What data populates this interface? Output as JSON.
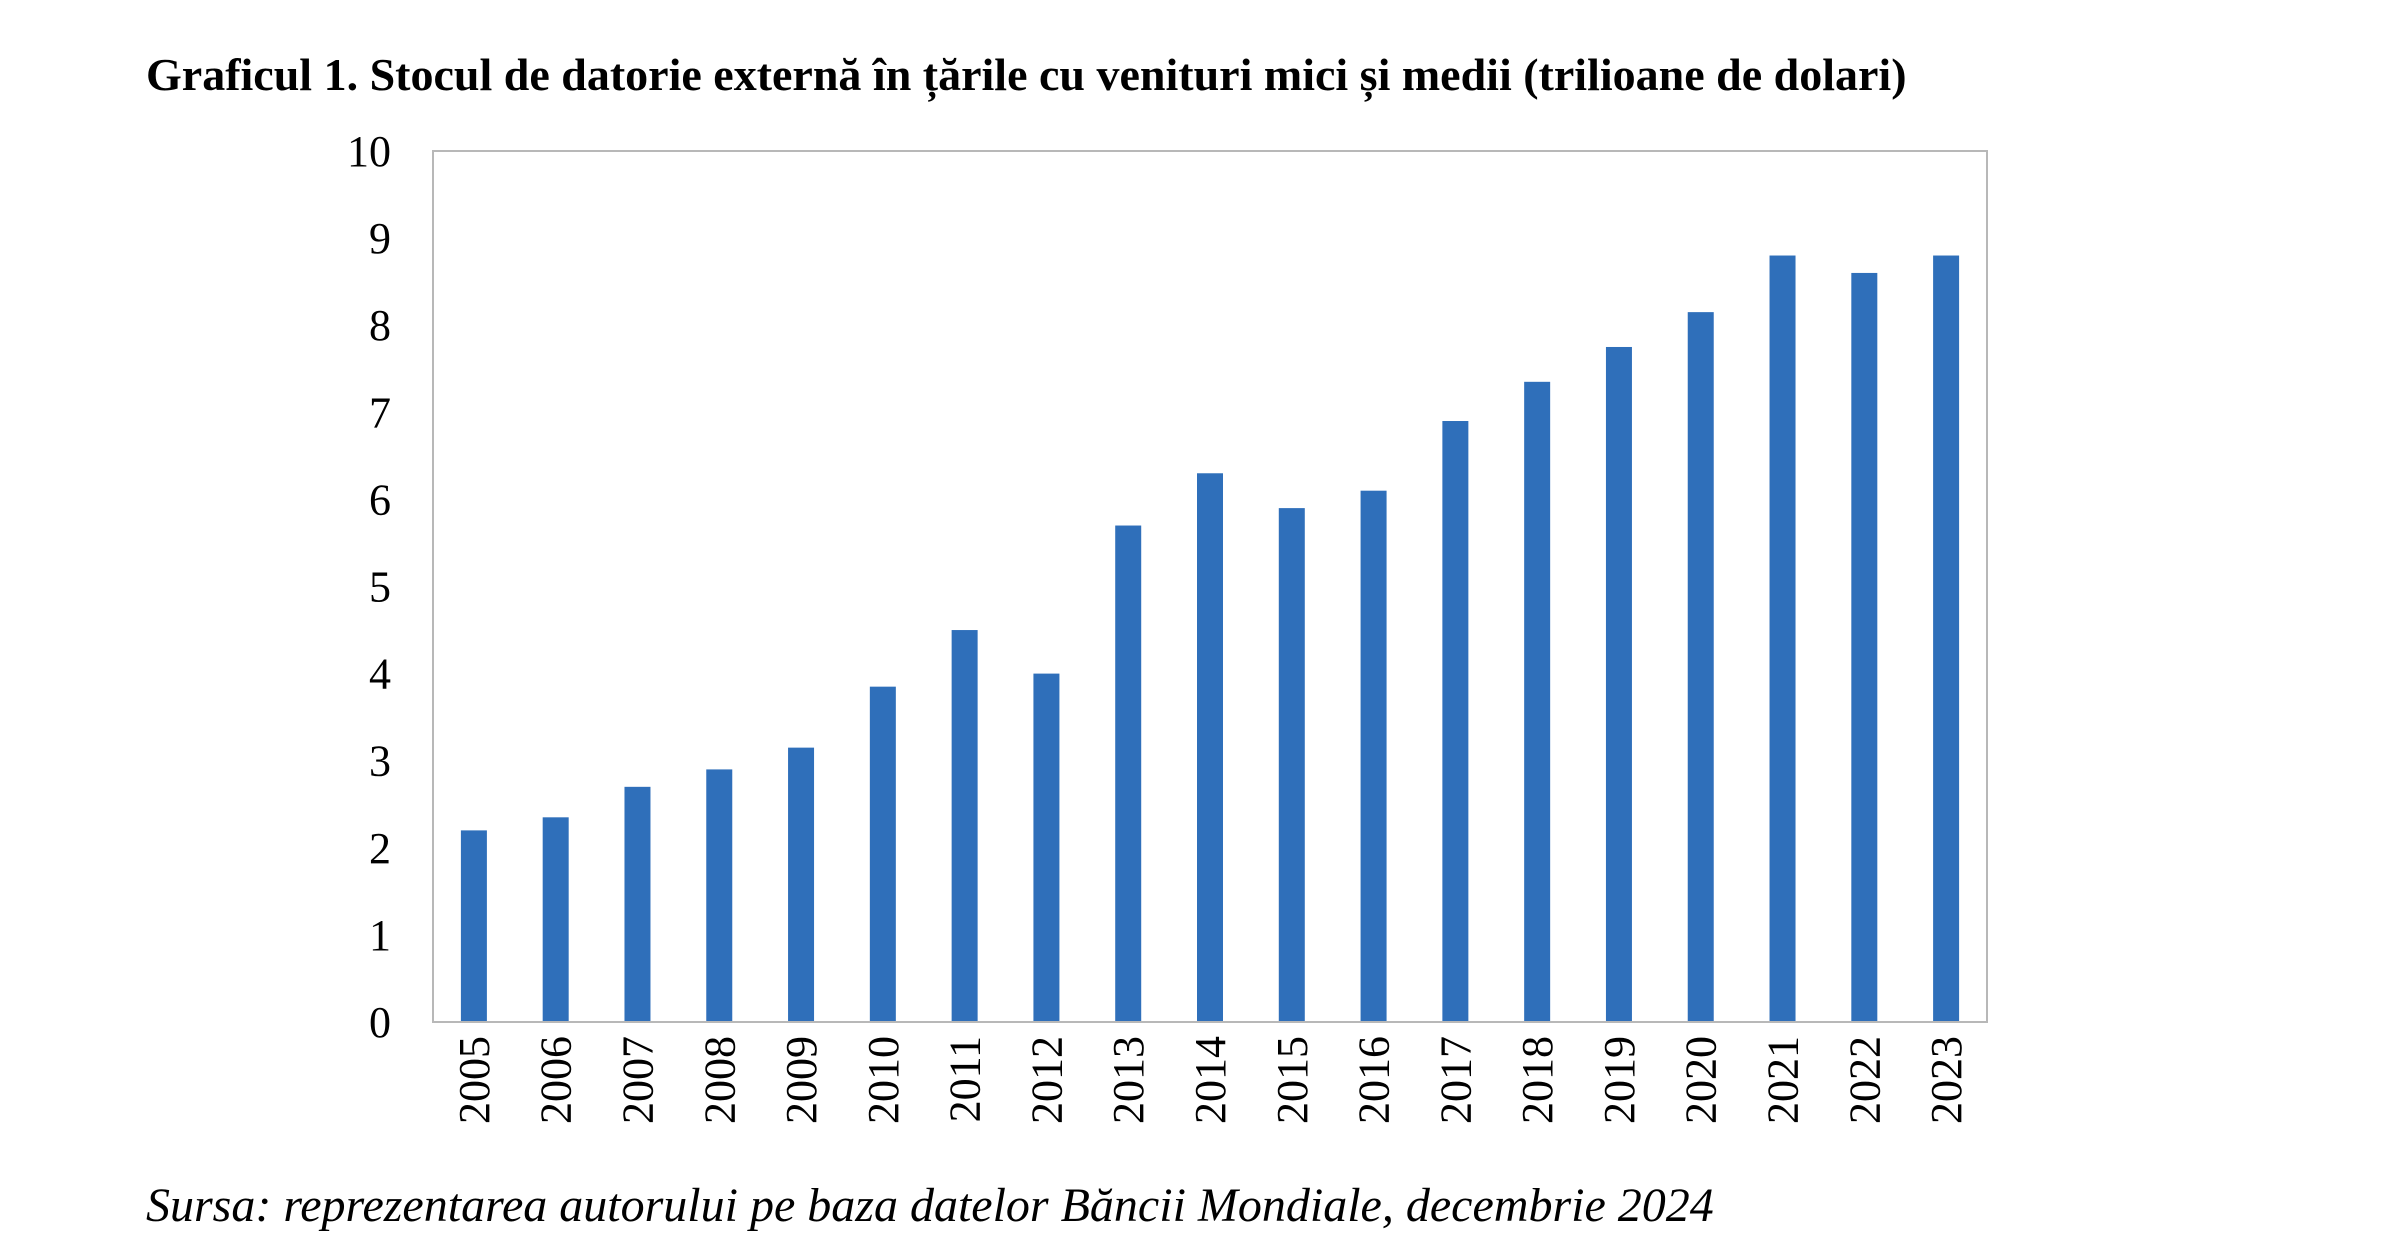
{
  "chart_data": {
    "type": "bar",
    "title": "Graficul 1. Stocul de datorie externă în țările cu venituri mici și medii (trilioane de dolari)",
    "xlabel": "",
    "ylabel": "",
    "categories": [
      "2005",
      "2006",
      "2007",
      "2008",
      "2009",
      "2010",
      "2011",
      "2012",
      "2013",
      "2014",
      "2015",
      "2016",
      "2017",
      "2018",
      "2019",
      "2020",
      "2021",
      "2022",
      "2023"
    ],
    "values": [
      2.2,
      2.35,
      2.7,
      2.9,
      3.15,
      3.85,
      4.5,
      4.0,
      5.7,
      6.3,
      5.9,
      6.1,
      6.9,
      7.35,
      7.75,
      8.15,
      8.8,
      8.6,
      8.8
    ],
    "yticks": [
      "0",
      "1",
      "2",
      "3",
      "4",
      "5",
      "6",
      "7",
      "8",
      "9",
      "10"
    ],
    "ylim": [
      0,
      10
    ],
    "grid": false,
    "legend": "none",
    "bar_color": "#2f6fba"
  },
  "source_note": "Sursa: reprezentarea autorului pe baza datelor Băncii Mondiale, decembrie 2024"
}
